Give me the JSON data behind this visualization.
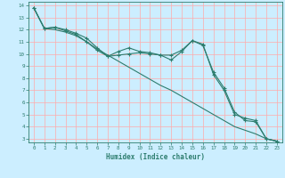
{
  "xlabel": "Humidex (Indice chaleur)",
  "bg_color": "#cceeff",
  "grid_color": "#ffaaaa",
  "line_color": "#2d7d6e",
  "xlim": [
    -0.5,
    23.5
  ],
  "ylim": [
    2.7,
    14.3
  ],
  "xticks": [
    0,
    1,
    2,
    3,
    4,
    5,
    6,
    7,
    8,
    9,
    10,
    11,
    12,
    13,
    14,
    15,
    16,
    17,
    18,
    19,
    20,
    21,
    22,
    23
  ],
  "yticks": [
    3,
    4,
    5,
    6,
    7,
    8,
    9,
    10,
    11,
    12,
    13,
    14
  ],
  "series1_x": [
    0,
    1,
    2,
    3,
    4,
    5,
    6,
    7,
    8,
    9,
    10,
    11,
    12,
    13,
    14,
    15,
    16,
    17,
    18,
    19,
    20,
    21,
    22,
    23
  ],
  "series1_y": [
    13.8,
    12.1,
    12.2,
    12.0,
    11.7,
    11.3,
    10.5,
    9.8,
    10.2,
    10.5,
    10.2,
    10.1,
    9.9,
    9.9,
    10.3,
    11.1,
    10.8,
    8.3,
    7.0,
    5.0,
    4.7,
    4.5,
    3.0,
    2.8
  ],
  "series2_x": [
    0,
    1,
    2,
    3,
    4,
    5,
    6,
    7,
    8,
    9,
    10,
    11,
    12,
    13,
    14,
    15,
    16,
    17,
    18,
    19,
    20,
    21,
    22,
    23
  ],
  "series2_y": [
    13.8,
    12.1,
    12.2,
    11.9,
    11.6,
    11.0,
    10.3,
    9.8,
    9.9,
    10.0,
    10.1,
    10.0,
    9.9,
    9.5,
    10.2,
    11.1,
    10.7,
    8.5,
    7.2,
    5.2,
    4.5,
    4.4,
    3.0,
    2.8
  ],
  "series3_x": [
    0,
    1,
    2,
    3,
    4,
    5,
    6,
    7,
    8,
    9,
    10,
    11,
    12,
    13,
    14,
    15,
    16,
    17,
    18,
    19,
    20,
    21,
    22,
    23
  ],
  "series3_y": [
    13.8,
    12.1,
    12.0,
    11.8,
    11.5,
    11.0,
    10.4,
    9.9,
    9.4,
    8.9,
    8.4,
    7.9,
    7.4,
    7.0,
    6.5,
    6.0,
    5.5,
    5.0,
    4.5,
    4.0,
    3.7,
    3.4,
    3.0,
    2.8
  ]
}
